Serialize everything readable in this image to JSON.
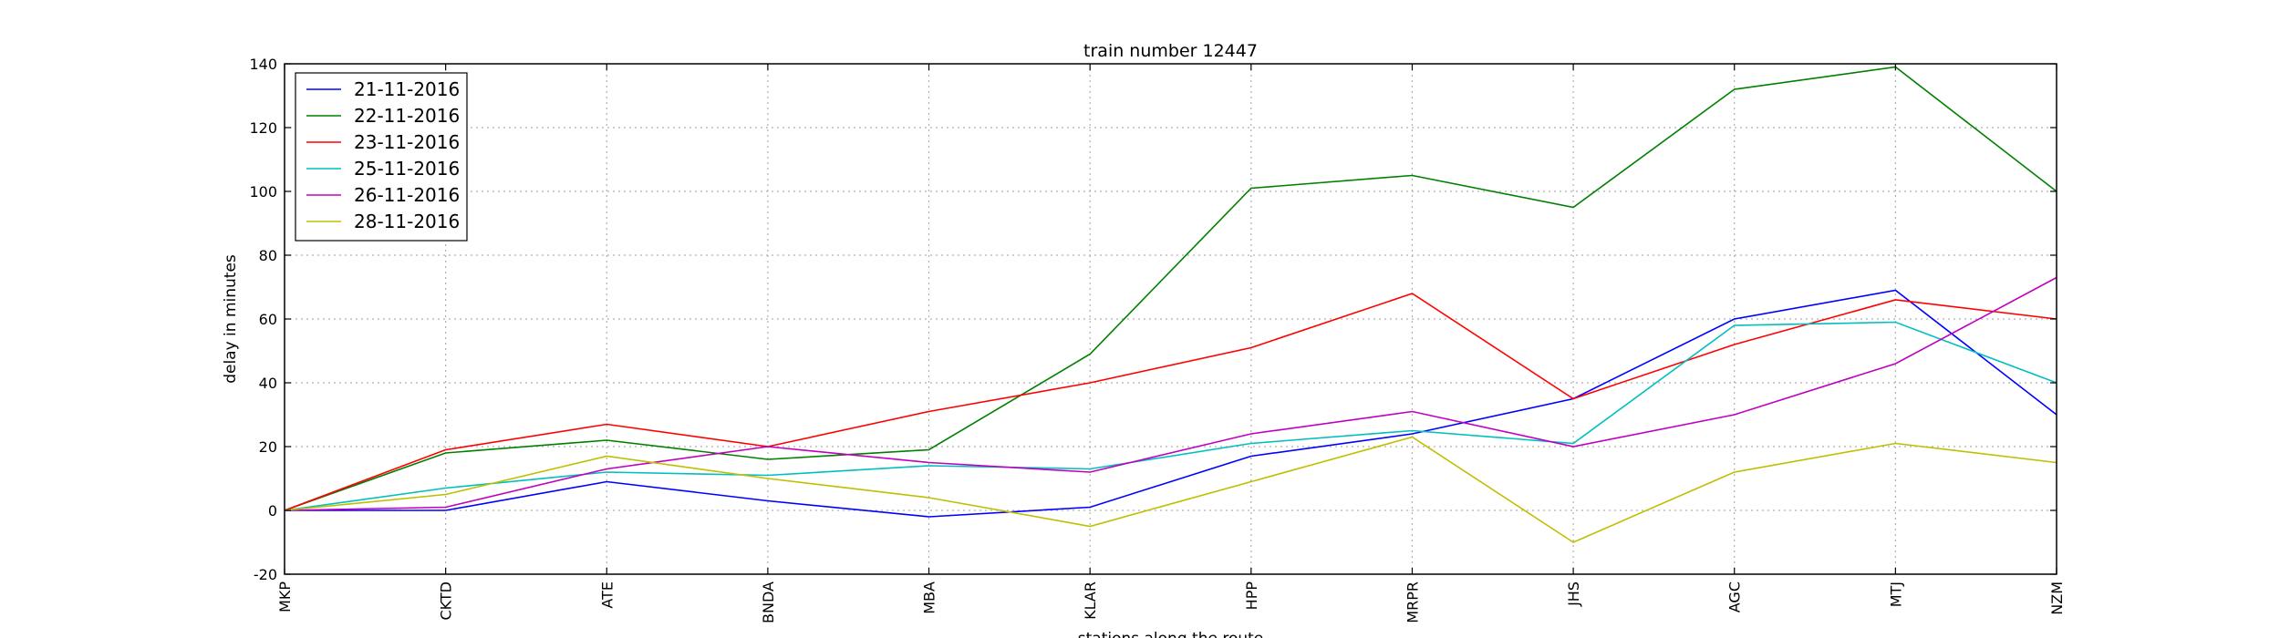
{
  "chart_data": {
    "type": "line",
    "title": "train number 12447",
    "xlabel": "stations along the route",
    "ylabel": "delay in minutes",
    "categories": [
      "MKP",
      "CKTD",
      "ATE",
      "BNDA",
      "MBA",
      "KLAR",
      "HPP",
      "MRPR",
      "JHS",
      "AGC",
      "MTJ",
      "NZM"
    ],
    "ylim": [
      -20,
      140
    ],
    "yticks": [
      -20,
      0,
      20,
      40,
      60,
      80,
      100,
      120,
      140
    ],
    "grid": true,
    "legend_position": "top-left",
    "series": [
      {
        "name": "21-11-2016",
        "color": "#0000ff",
        "values": [
          0,
          0,
          9,
          3,
          -2,
          1,
          17,
          24,
          35,
          60,
          69,
          30
        ]
      },
      {
        "name": "22-11-2016",
        "color": "#008000",
        "values": [
          0,
          18,
          22,
          16,
          19,
          49,
          101,
          105,
          95,
          132,
          139,
          100
        ]
      },
      {
        "name": "23-11-2016",
        "color": "#ff0000",
        "values": [
          0,
          19,
          27,
          20,
          31,
          40,
          51,
          68,
          35,
          52,
          66,
          60
        ]
      },
      {
        "name": "25-11-2016",
        "color": "#00bfbf",
        "values": [
          0,
          7,
          12,
          11,
          14,
          13,
          21,
          25,
          21,
          58,
          59,
          40
        ]
      },
      {
        "name": "26-11-2016",
        "color": "#bf00bf",
        "values": [
          0,
          1,
          13,
          20,
          15,
          12,
          24,
          31,
          20,
          30,
          46,
          73
        ]
      },
      {
        "name": "28-11-2016",
        "color": "#bfbf00",
        "values": [
          0,
          5,
          17,
          10,
          4,
          -5,
          9,
          23,
          -10,
          12,
          21,
          15
        ]
      }
    ]
  }
}
